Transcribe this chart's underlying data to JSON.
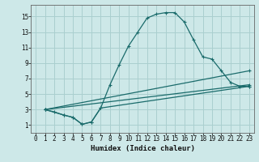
{
  "xlabel": "Humidex (Indice chaleur)",
  "background_color": "#cde8e8",
  "grid_color": "#aacfcf",
  "line_color": "#1a6b6b",
  "xlim": [
    -0.5,
    23.5
  ],
  "ylim": [
    0,
    16.5
  ],
  "xticks": [
    0,
    1,
    2,
    3,
    4,
    5,
    6,
    7,
    8,
    9,
    10,
    11,
    12,
    13,
    14,
    15,
    16,
    17,
    18,
    19,
    20,
    21,
    22,
    23
  ],
  "yticks": [
    1,
    3,
    5,
    7,
    9,
    11,
    13,
    15
  ],
  "curve1_x": [
    1,
    2,
    3,
    4,
    5,
    6,
    7,
    8,
    9,
    10,
    11,
    12,
    13,
    14,
    15,
    16,
    17,
    18,
    19,
    20,
    21,
    22,
    23
  ],
  "curve1_y": [
    3.0,
    2.7,
    2.3,
    2.0,
    1.1,
    1.4,
    3.2,
    6.2,
    8.8,
    11.2,
    13.0,
    14.8,
    15.3,
    15.5,
    15.5,
    14.3,
    12.0,
    9.8,
    9.5,
    8.0,
    6.5,
    6.0,
    6.0
  ],
  "curve2_x": [
    1,
    3,
    4,
    5,
    6,
    7,
    23
  ],
  "curve2_y": [
    3.0,
    2.3,
    2.0,
    1.1,
    1.4,
    3.2,
    6.0
  ],
  "curve3_x": [
    1,
    23
  ],
  "curve3_y": [
    3.0,
    8.0
  ],
  "curve4_x": [
    1,
    23
  ],
  "curve4_y": [
    3.0,
    6.2
  ]
}
